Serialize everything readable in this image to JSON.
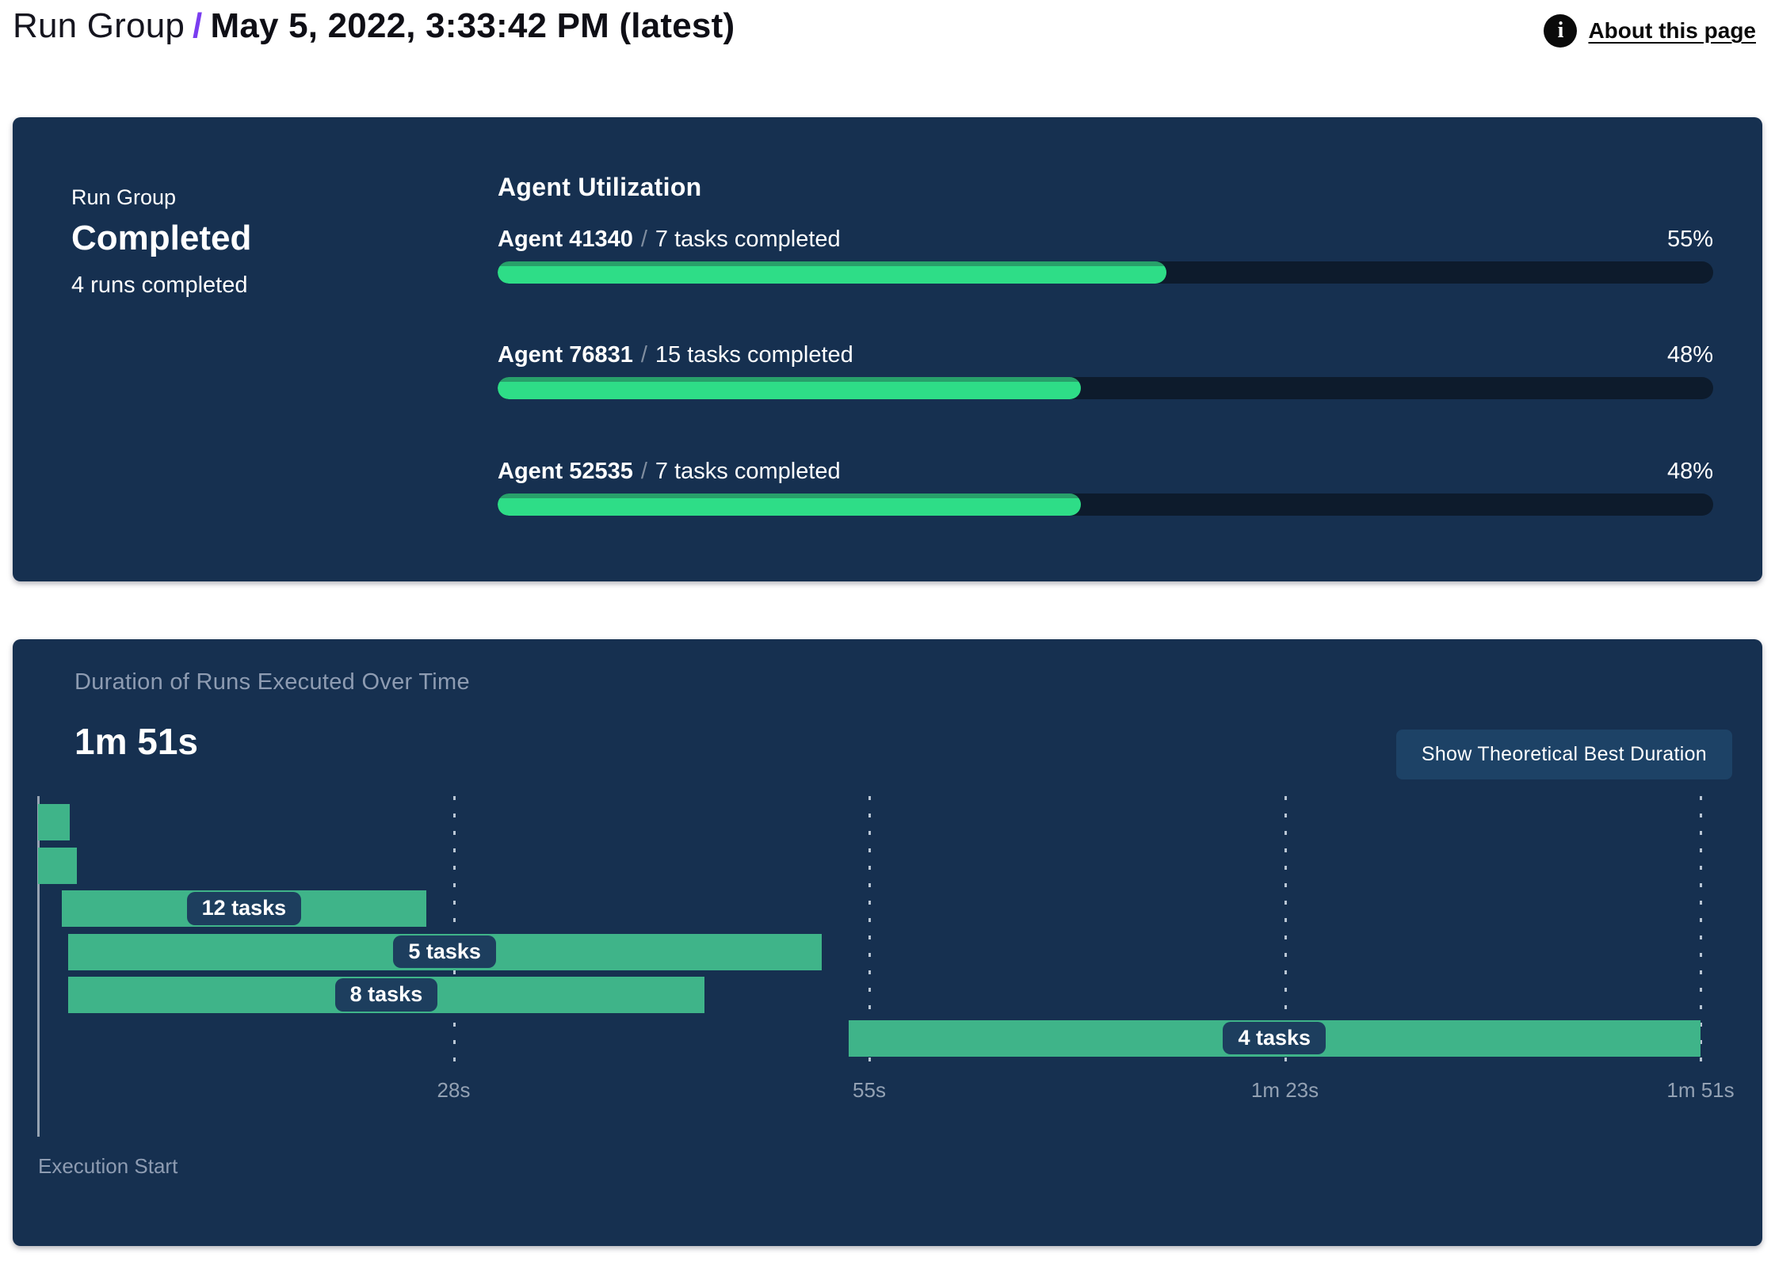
{
  "header": {
    "breadcrumb_root": "Run Group",
    "separator": "/",
    "title": "May 5, 2022, 3:33:42 PM (latest)",
    "about_label": "About this page",
    "info_icon_glyph": "i"
  },
  "colors": {
    "panel_bg": "#163050",
    "progress_track": "#0d1b2c",
    "progress_fill": "#2edd87",
    "progress_fill_edge": "#28a06a",
    "gantt_bar": "#3fb489",
    "pill_bg": "#1d3e5e",
    "button_bg": "#1d4266",
    "muted_text": "#8e9cb2",
    "accent_purple": "#7a3df0"
  },
  "run_group_panel": {
    "label": "Run Group",
    "status": "Completed",
    "subtitle": "4 runs completed",
    "utilization": {
      "title": "Agent Utilization",
      "agents": [
        {
          "name": "Agent 41340",
          "tasks": "7 tasks completed",
          "percent": 55
        },
        {
          "name": "Agent 76831",
          "tasks": "15 tasks completed",
          "percent": 48
        },
        {
          "name": "Agent 52535",
          "tasks": "7 tasks completed",
          "percent": 48
        }
      ]
    }
  },
  "duration_panel": {
    "title": "Duration of Runs Executed Over Time",
    "total_duration": "1m 51s",
    "button_label": "Show Theoretical Best Duration",
    "axis_label": "Execution Start"
  },
  "chart_data": [
    {
      "type": "bar",
      "title": "Agent Utilization",
      "orientation": "horizontal",
      "categories": [
        "Agent 41340",
        "Agent 76831",
        "Agent 52535"
      ],
      "values": [
        55,
        48,
        48
      ],
      "value_unit": "%",
      "annotations": [
        "7 tasks completed",
        "15 tasks completed",
        "7 tasks completed"
      ],
      "xlim": [
        0,
        100
      ],
      "grid": false
    },
    {
      "type": "bar",
      "subtype": "gantt-timeline",
      "title": "Duration of Runs Executed Over Time",
      "total_duration_label": "1m 51s",
      "xlabel": "Execution Start",
      "xlim_seconds": [
        0,
        111
      ],
      "grid": true,
      "ticks": [
        {
          "label": "28s",
          "pct": 25
        },
        {
          "label": "55s",
          "pct": 50
        },
        {
          "label": "1m 23s",
          "pct": 75
        },
        {
          "label": "1m 51s",
          "pct": 100
        }
      ],
      "bars": [
        {
          "start_s": 0,
          "end_s": 2.1,
          "label": ""
        },
        {
          "start_s": 0,
          "end_s": 2.6,
          "label": ""
        },
        {
          "start_s": 1.6,
          "end_s": 25.9,
          "label": "12 tasks"
        },
        {
          "start_s": 2.0,
          "end_s": 52.3,
          "label": "5 tasks"
        },
        {
          "start_s": 2.0,
          "end_s": 44.5,
          "label": "8 tasks"
        },
        {
          "start_s": 54.1,
          "end_s": 111,
          "label": "4 tasks"
        }
      ]
    }
  ]
}
